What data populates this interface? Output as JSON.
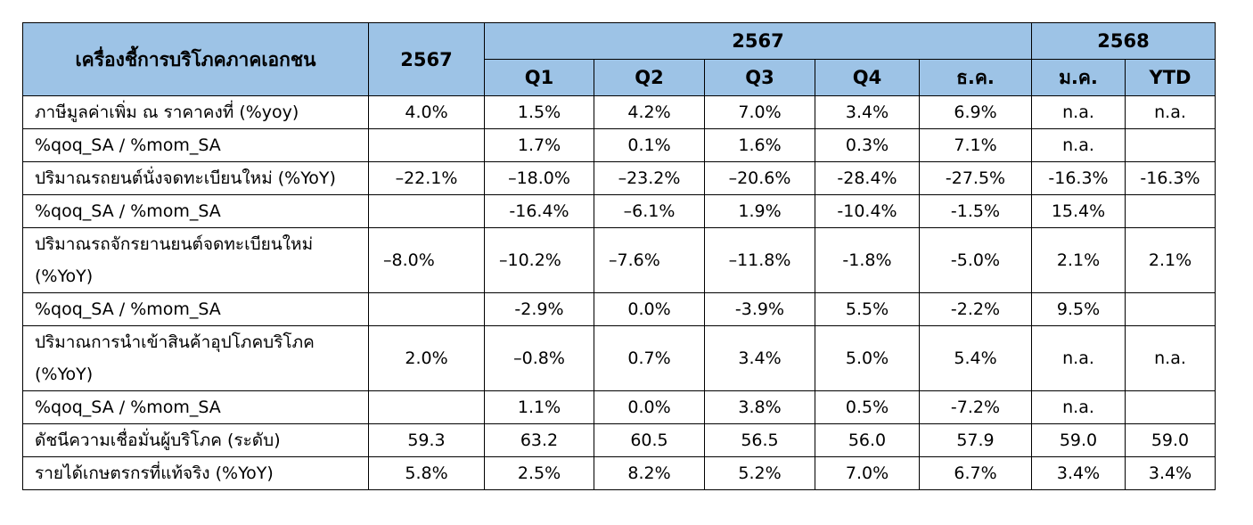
{
  "header": {
    "indicator_label": "เครื่องชี้การบริโภคภาคเอกชน",
    "year_col": "2567",
    "group_2567": "2567",
    "group_2568": "2568",
    "subcols": [
      "Q1",
      "Q2",
      "Q3",
      "Q4",
      "ธ.ค.",
      "ม.ค.",
      "YTD"
    ]
  },
  "rows": [
    {
      "label": "ภาษีมูลค่าเพิ่ม ณ ราคาคงที่ (%yoy)",
      "values": [
        "4.0%",
        "1.5%",
        "4.2%",
        "7.0%",
        "3.4%",
        "6.9%",
        "n.a.",
        "n.a."
      ]
    },
    {
      "label": "%qoq_SA / %mom_SA",
      "values": [
        "",
        "1.7%",
        "0.1%",
        "1.6%",
        "0.3%",
        "7.1%",
        "n.a.",
        ""
      ]
    },
    {
      "label": "ปริมาณรถยนต์นั่งจดทะเบียนใหม่ (%YoY)",
      "values": [
        "–22.1%",
        "–18.0%",
        "–23.2%",
        "–20.6%",
        "-28.4%",
        "-27.5%",
        "-16.3%",
        "-16.3%"
      ]
    },
    {
      "label": "%qoq_SA / %mom_SA",
      "values": [
        "",
        "-16.4%",
        "–6.1%",
        "1.9%",
        "-10.4%",
        "-1.5%",
        "15.4%",
        ""
      ]
    },
    {
      "label": "ปริมาณรถจักรยานยนต์จดทะเบียนใหม่ (%YoY)",
      "values": [
        "–8.0%",
        "–10.2%",
        "–7.6%",
        "–11.8%",
        "-1.8%",
        "-5.0%",
        "2.1%",
        "2.1%"
      ]
    },
    {
      "label": "%qoq_SA / %mom_SA",
      "values": [
        "",
        "-2.9%",
        "0.0%",
        "-3.9%",
        "5.5%",
        "-2.2%",
        "9.5%",
        ""
      ]
    },
    {
      "label": "ปริมาณการนำเข้าสินค้าอุปโภคบริโภค (%YoY)",
      "values": [
        "2.0%",
        "–0.8%",
        "0.7%",
        "3.4%",
        "5.0%",
        "5.4%",
        "n.a.",
        "n.a."
      ]
    },
    {
      "label": "%qoq_SA / %mom_SA",
      "values": [
        "",
        "1.1%",
        "0.0%",
        "3.8%",
        "0.5%",
        "-7.2%",
        "n.a.",
        ""
      ]
    },
    {
      "label": "ดัชนีความเชื่อมั่นผู้บริโภค (ระดับ)",
      "values": [
        "59.3",
        "63.2",
        "60.5",
        "56.5",
        "56.0",
        "57.9",
        "59.0",
        "59.0"
      ]
    },
    {
      "label": "รายได้เกษตรกรที่แท้จริง (%YoY)",
      "values": [
        "5.8%",
        "2.5%",
        "8.2%",
        "5.2%",
        "7.0%",
        "6.7%",
        "3.4%",
        "3.4%"
      ]
    }
  ],
  "colors": {
    "header_bg": "#9dc3e6",
    "border": "#000000"
  }
}
